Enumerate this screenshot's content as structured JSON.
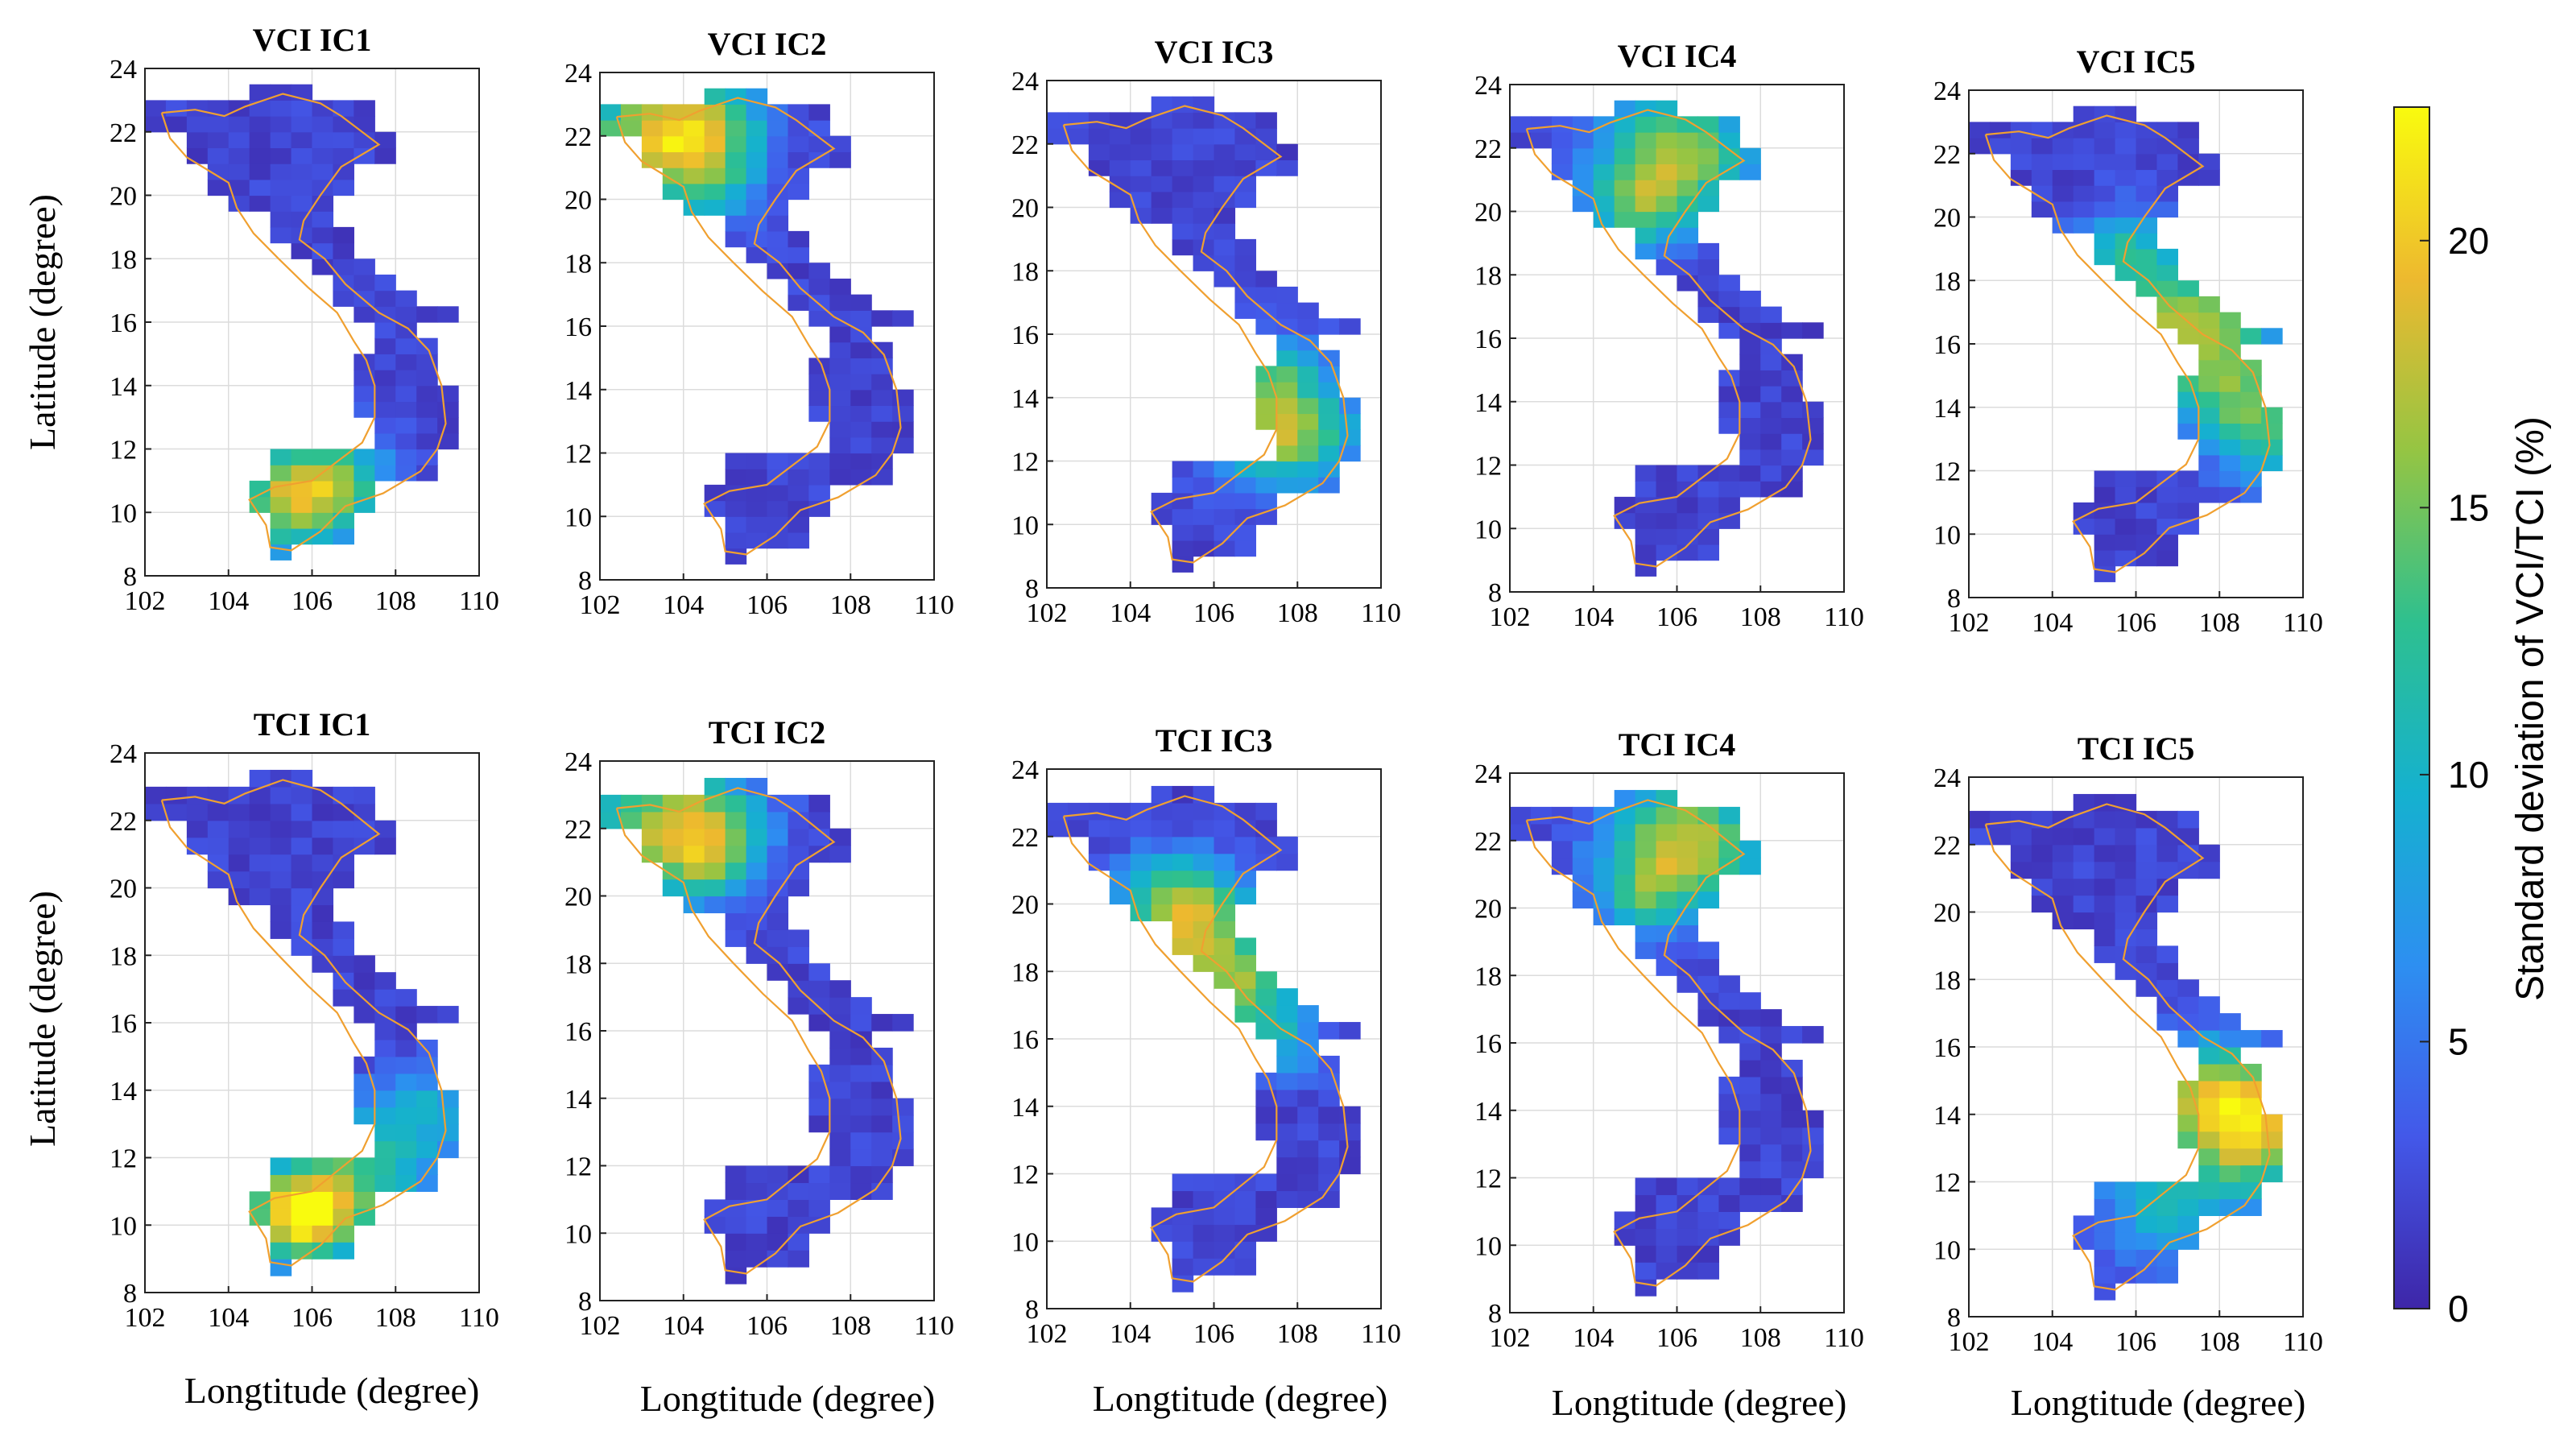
{
  "chart_data": {
    "type": "heatmap",
    "figure": "Spatial distribution of standard deviation of VCI and TCI independent components over Vietnam",
    "colorbar": {
      "label": "Standard deviation of  VCI/TCI (%)",
      "range": [
        0,
        22.5
      ],
      "ticks": [
        "0",
        "5",
        "10",
        "15",
        "20"
      ],
      "colormap": "parula",
      "colors": [
        "#3e26a8",
        "#4358e9",
        "#2d8ff1",
        "#15b1cf",
        "#2ec08f",
        "#95c543",
        "#edb92f",
        "#f9fb0e"
      ]
    },
    "shared_axes": {
      "xlabel": "Longtitude (degree)",
      "ylabel": "Latitude (degree)",
      "xlim": [
        102,
        110
      ],
      "ylim": [
        8,
        24
      ],
      "xticks": [
        "102",
        "104",
        "106",
        "108",
        "110"
      ],
      "yticks": [
        "8",
        "10",
        "12",
        "14",
        "16",
        "18",
        "20",
        "22",
        "24"
      ],
      "grid": true,
      "cell_size_degree": 0.5,
      "boundary_color": "#f0a030"
    },
    "panels": [
      {
        "title": "VCI IC1",
        "hotspots": [
          [
            105.5,
            10.3,
            1.1,
            13.5
          ],
          [
            106.5,
            11.2,
            1.0,
            9
          ]
        ]
      },
      {
        "title": "VCI IC2",
        "hotspots": [
          [
            103.3,
            22.0,
            1.4,
            14.5
          ],
          [
            104.6,
            22.3,
            0.9,
            9
          ],
          [
            104.7,
            20.4,
            0.8,
            7
          ]
        ]
      },
      {
        "title": "VCI IC3",
        "hotspots": [
          [
            107.6,
            13.0,
            1.2,
            16
          ],
          [
            107.5,
            15.0,
            0.7,
            7
          ]
        ]
      },
      {
        "title": "VCI IC4",
        "hotspots": [
          [
            106.0,
            21.8,
            1.3,
            15
          ],
          [
            105.0,
            20.0,
            0.9,
            9
          ]
        ]
      },
      {
        "title": "VCI IC5",
        "hotspots": [
          [
            107.2,
            16.6,
            1.4,
            15
          ],
          [
            108.6,
            14.2,
            1.1,
            10.5
          ],
          [
            105.7,
            19.0,
            0.9,
            8
          ],
          [
            109.2,
            12.6,
            0.8,
            7
          ]
        ]
      },
      {
        "title": "TCI IC1",
        "hotspots": [
          [
            105.7,
            10.3,
            0.9,
            20
          ],
          [
            107.2,
            11.6,
            1.3,
            10
          ],
          [
            108.8,
            13.5,
            0.9,
            6
          ]
        ]
      },
      {
        "title": "TCI IC2",
        "hotspots": [
          [
            103.3,
            21.9,
            1.3,
            14
          ],
          [
            104.8,
            22.2,
            0.9,
            8.5
          ],
          [
            104.8,
            20.8,
            0.7,
            7
          ]
        ]
      },
      {
        "title": "TCI IC3",
        "hotspots": [
          [
            105.6,
            19.0,
            1.2,
            14
          ],
          [
            106.8,
            17.3,
            0.9,
            10
          ],
          [
            105.0,
            20.4,
            0.9,
            8
          ],
          [
            107.8,
            15.8,
            0.7,
            6
          ]
        ]
      },
      {
        "title": "TCI IC4",
        "hotspots": [
          [
            106.2,
            21.9,
            1.3,
            16
          ],
          [
            105.2,
            20.3,
            0.8,
            7
          ]
        ]
      },
      {
        "title": "TCI IC5",
        "hotspots": [
          [
            108.7,
            13.5,
            1.3,
            17
          ],
          [
            107.7,
            14.9,
            1.0,
            10
          ],
          [
            106.6,
            11.1,
            1.2,
            7
          ]
        ]
      }
    ]
  }
}
